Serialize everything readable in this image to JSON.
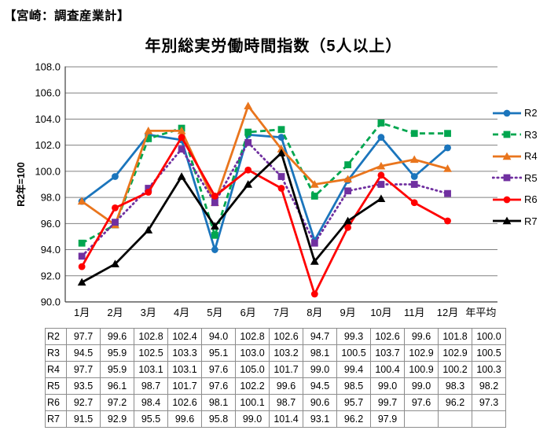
{
  "header": {
    "region_label": "【宮崎：調査産業計】"
  },
  "chart_data": {
    "type": "line",
    "title": "年別総実労働時間指数（5人以上）",
    "ylabel": "R2年=100",
    "ylim": [
      90.0,
      108.0
    ],
    "y_tick_labels": [
      "90.0",
      "92.0",
      "94.0",
      "96.0",
      "98.0",
      "100.0",
      "102.0",
      "104.0",
      "106.0",
      "108.0"
    ],
    "grid": true,
    "legend_position": "right",
    "categories": [
      "1月",
      "2月",
      "3月",
      "4月",
      "5月",
      "6月",
      "7月",
      "8月",
      "9月",
      "10月",
      "11月",
      "12月",
      "年平均"
    ],
    "series": [
      {
        "name": "R2",
        "color": "#1B75BC",
        "line_style": "solid",
        "marker": "circle",
        "values": [
          97.7,
          99.6,
          102.8,
          102.4,
          94.0,
          102.8,
          102.6,
          94.7,
          99.3,
          102.6,
          99.6,
          101.8
        ],
        "annual_mean": 100.0
      },
      {
        "name": "R3",
        "color": "#00A64F",
        "line_style": "dashed",
        "marker": "square",
        "values": [
          94.5,
          95.9,
          102.5,
          103.3,
          95.1,
          103.0,
          103.2,
          98.1,
          100.5,
          103.7,
          102.9,
          102.9
        ],
        "annual_mean": 100.5
      },
      {
        "name": "R4",
        "color": "#E9751D",
        "line_style": "solid",
        "marker": "triangle",
        "values": [
          97.7,
          95.9,
          103.1,
          103.1,
          97.6,
          105.0,
          101.7,
          99.0,
          99.4,
          100.4,
          100.9,
          100.2
        ],
        "annual_mean": 100.3
      },
      {
        "name": "R5",
        "color": "#7030A0",
        "line_style": "dotted",
        "marker": "square",
        "values": [
          93.5,
          96.1,
          98.7,
          101.7,
          97.6,
          102.2,
          99.6,
          94.5,
          98.5,
          99.0,
          99.0,
          98.3
        ],
        "annual_mean": 98.2
      },
      {
        "name": "R6",
        "color": "#FF0000",
        "line_style": "solid",
        "marker": "circle",
        "values": [
          92.7,
          97.2,
          98.4,
          102.6,
          98.1,
          100.1,
          98.7,
          90.6,
          95.7,
          99.7,
          97.6,
          96.2
        ],
        "annual_mean": 97.3
      },
      {
        "name": "R7",
        "color": "#000000",
        "line_style": "solid",
        "marker": "triangle",
        "values": [
          91.5,
          92.9,
          95.5,
          99.6,
          95.8,
          99.0,
          101.4,
          93.1,
          96.2,
          97.9
        ],
        "annual_mean": null
      }
    ]
  },
  "colors": {
    "gridline": "#808080",
    "axis": "#3F3F3F",
    "table_border": "#8C8C8C",
    "text": "#000000",
    "background": "#FFFFFF"
  }
}
